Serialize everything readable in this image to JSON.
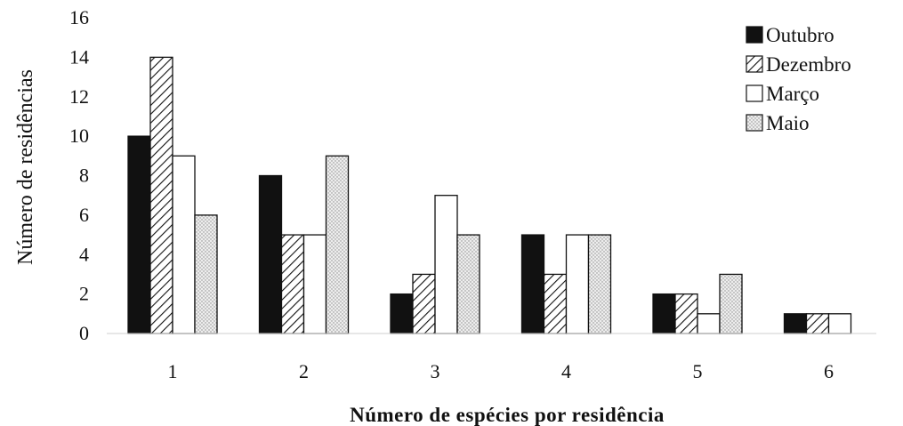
{
  "chart_data": {
    "type": "bar",
    "title": "",
    "xlabel": "Número de espécies por residência",
    "ylabel": "Número de residências",
    "categories": [
      "1",
      "2",
      "3",
      "4",
      "5",
      "6"
    ],
    "y_ticks": [
      "0",
      "2",
      "4",
      "6",
      "8",
      "10",
      "12",
      "14",
      "16"
    ],
    "ylim": [
      0,
      16
    ],
    "grid": false,
    "legend_position": "top-right",
    "series": [
      {
        "name": "Outubro",
        "values": [
          10,
          8,
          2,
          5,
          2,
          1
        ],
        "pattern": "solid-black"
      },
      {
        "name": "Dezembro",
        "values": [
          14,
          5,
          3,
          3,
          2,
          1
        ],
        "pattern": "diagonal-hatch"
      },
      {
        "name": "Março",
        "values": [
          9,
          5,
          7,
          5,
          1,
          1
        ],
        "pattern": "white"
      },
      {
        "name": "Maio",
        "values": [
          6,
          9,
          5,
          5,
          3,
          0
        ],
        "pattern": "light-dotted"
      }
    ],
    "colors": {
      "ink": "#111111",
      "background": "#ffffff",
      "dotted_fill": "#e6e6e6"
    }
  }
}
